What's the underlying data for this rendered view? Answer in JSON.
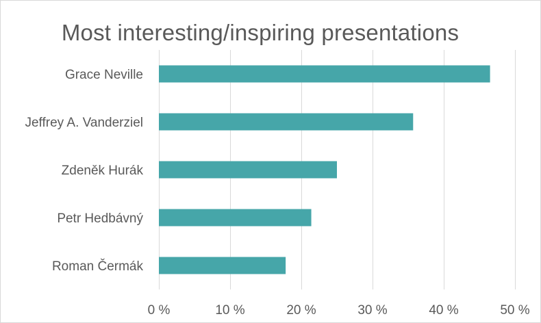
{
  "chart_data": {
    "type": "bar",
    "orientation": "horizontal",
    "title": "Most interesting/inspiring  presentations",
    "categories": [
      "Grace Neville",
      "Jeffrey A. Vanderziel",
      "Zdeněk Hurák",
      "Petr Hedbávný",
      "Roman Čermák"
    ],
    "values": [
      46.5,
      35.7,
      25.0,
      21.4,
      17.8
    ],
    "xlabel": "",
    "ylabel": "",
    "xlim": [
      0,
      50
    ],
    "x_ticks": [
      0,
      10,
      20,
      30,
      40,
      50
    ],
    "x_tick_labels": [
      "0 %",
      "10 %",
      "20 %",
      "30 %",
      "40 %",
      "50 %"
    ],
    "grid": "vertical",
    "legend": "none",
    "bar_color": "#46A6A9",
    "grid_color": "#d9d9d9"
  }
}
